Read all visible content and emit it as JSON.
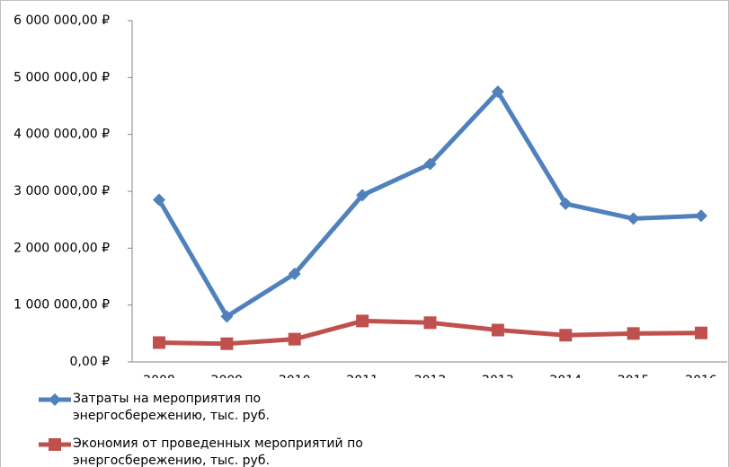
{
  "chart_data": {
    "type": "line",
    "categories": [
      "2008",
      "2009",
      "2010",
      "2011",
      "2012",
      "2013",
      "2014",
      "2015",
      "2016"
    ],
    "series": [
      {
        "name": "Затраты на мероприятия по энергосбережению, тыс. руб.",
        "color": "#4f81bd",
        "marker": "diamond",
        "values": [
          2850000,
          800000,
          1550000,
          2930000,
          3480000,
          4750000,
          2780000,
          2520000,
          2570000
        ]
      },
      {
        "name": "Экономия от проведенных мероприятий по энергосбережению, тыс. руб.",
        "color": "#c0504d",
        "marker": "square",
        "values": [
          340000,
          320000,
          400000,
          720000,
          690000,
          560000,
          470000,
          500000,
          510000
        ]
      }
    ],
    "ylim": [
      0,
      6000000
    ],
    "yticks": [
      {
        "value": 0,
        "label": "0,00 ₽"
      },
      {
        "value": 1000000,
        "label": "1 000 000,00 ₽"
      },
      {
        "value": 2000000,
        "label": "2 000 000,00 ₽"
      },
      {
        "value": 3000000,
        "label": "3 000 000,00 ₽"
      },
      {
        "value": 4000000,
        "label": "4 000 000,00 ₽"
      },
      {
        "value": 5000000,
        "label": "5 000 000,00 ₽"
      },
      {
        "value": 6000000,
        "label": "6 000 000,00 ₽"
      }
    ],
    "grid": false,
    "legend": "bottom"
  }
}
